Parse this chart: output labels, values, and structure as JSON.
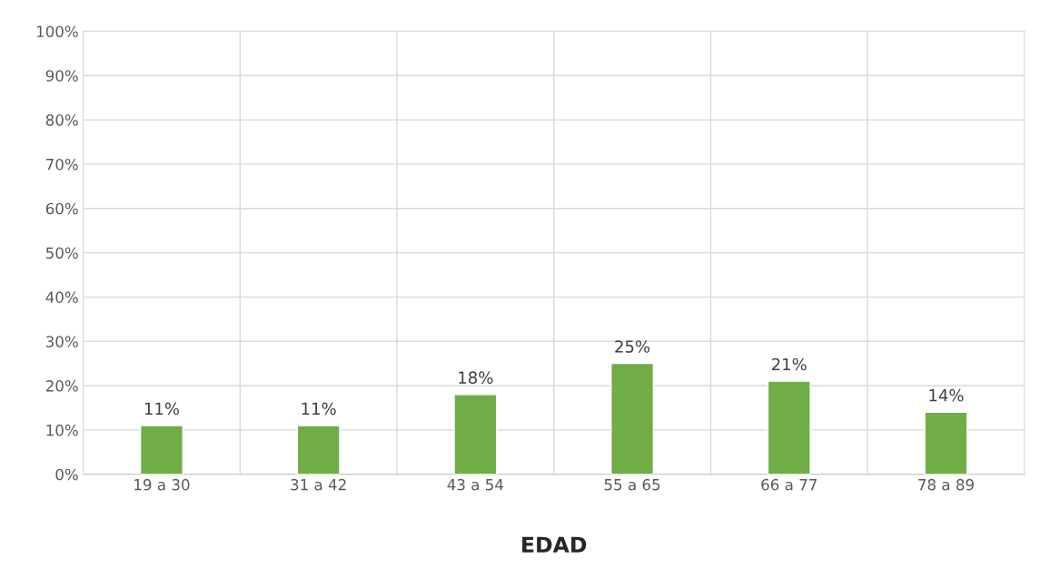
{
  "chart_data": {
    "type": "bar",
    "xlabel": "EDAD",
    "categories": [
      "19 a 30",
      "31 a 42",
      "43 a 54",
      "55 a 65",
      "66 a 77",
      "78 a 89"
    ],
    "values": [
      11,
      11,
      18,
      25,
      21,
      14
    ],
    "value_labels": [
      "11%",
      "11%",
      "18%",
      "25%",
      "21%",
      "14%"
    ],
    "color": "#70ad47",
    "ylim": [
      0,
      100
    ],
    "yticks": [
      {
        "value": 0,
        "label": "0%"
      },
      {
        "value": 10,
        "label": "10%"
      },
      {
        "value": 20,
        "label": "20%"
      },
      {
        "value": 30,
        "label": "30%"
      },
      {
        "value": 40,
        "label": "40%"
      },
      {
        "value": 50,
        "label": "50%"
      },
      {
        "value": 60,
        "label": "60%"
      },
      {
        "value": 70,
        "label": "70%"
      },
      {
        "value": 80,
        "label": "80%"
      },
      {
        "value": 90,
        "label": "90%"
      },
      {
        "value": 100,
        "label": "100%"
      }
    ],
    "grid": true,
    "legend": false
  }
}
